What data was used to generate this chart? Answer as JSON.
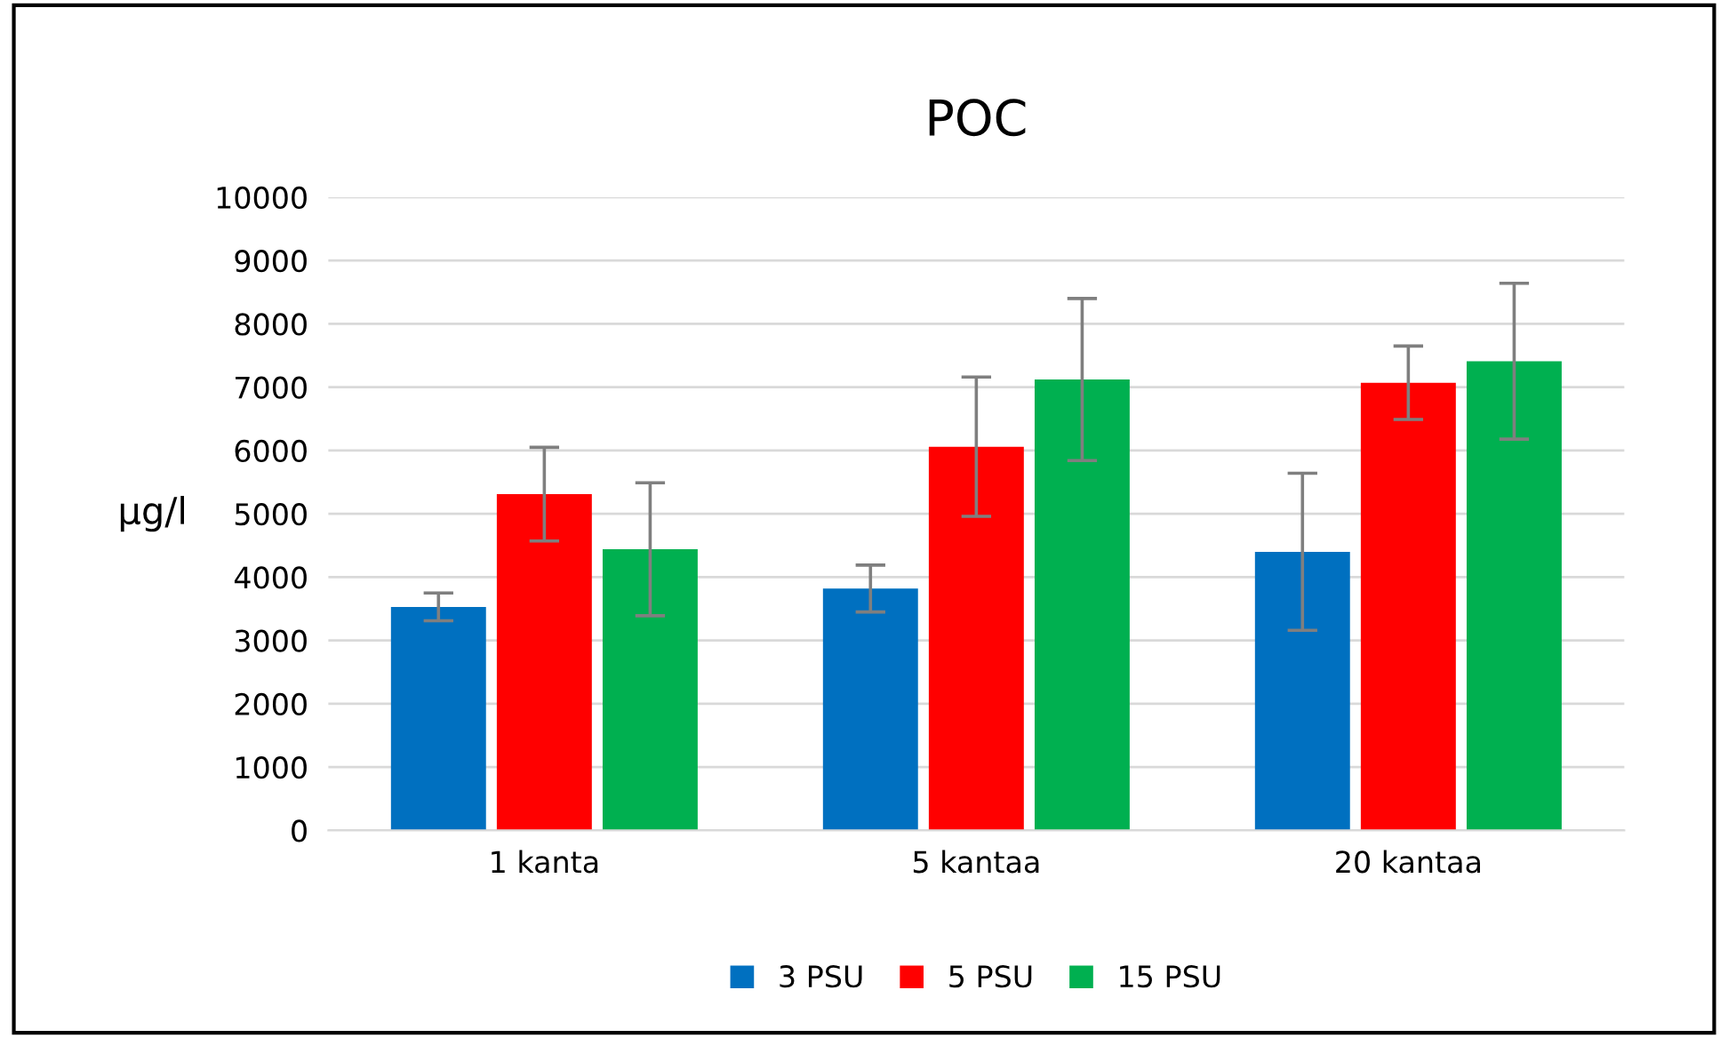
{
  "chart_data": {
    "type": "bar",
    "title": "POC",
    "ylabel": "µg/l",
    "categories": [
      "1 kanta",
      "5 kantaa",
      "20 kantaa"
    ],
    "series": [
      {
        "name": "3 PSU",
        "color": "#0070c0",
        "values": [
          3530,
          3820,
          4400
        ],
        "errors": [
          220,
          370,
          1240
        ]
      },
      {
        "name": "5 PSU",
        "color": "#ff0000",
        "values": [
          5310,
          6060,
          7070
        ],
        "errors": [
          740,
          1100,
          580
        ]
      },
      {
        "name": "15 PSU",
        "color": "#00b050",
        "values": [
          4440,
          7120,
          7410
        ],
        "errors": [
          1050,
          1280,
          1230
        ]
      }
    ],
    "ylim": [
      0,
      10000
    ],
    "yticks": [
      0,
      1000,
      2000,
      3000,
      4000,
      5000,
      6000,
      7000,
      8000,
      9000,
      10000
    ],
    "grid": "y",
    "legend": "bottom"
  }
}
